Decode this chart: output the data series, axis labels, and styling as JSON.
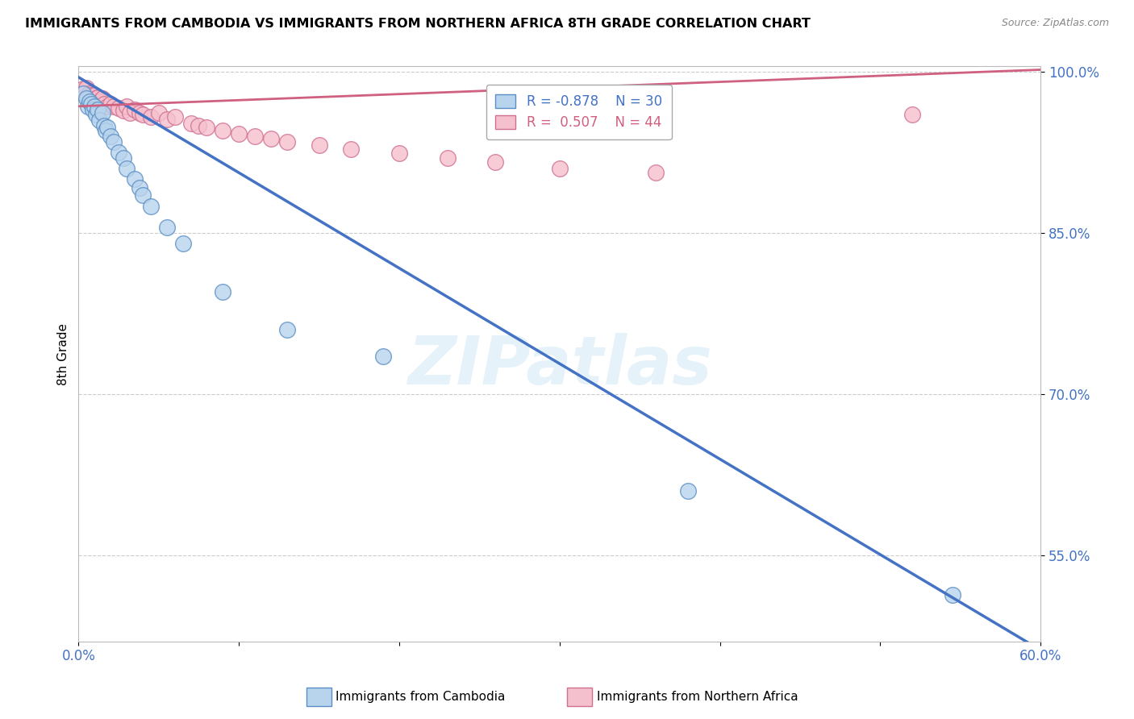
{
  "title": "IMMIGRANTS FROM CAMBODIA VS IMMIGRANTS FROM NORTHERN AFRICA 8TH GRADE CORRELATION CHART",
  "source": "Source: ZipAtlas.com",
  "xlabel_label": "Immigrants from Cambodia",
  "ylabel_label": "8th Grade",
  "x_min": 0.0,
  "x_max": 0.6,
  "y_min": 0.47,
  "y_max": 1.005,
  "y_ticks": [
    0.55,
    0.7,
    0.85,
    1.0
  ],
  "y_tick_labels": [
    "55.0%",
    "70.0%",
    "85.0%",
    "100.0%"
  ],
  "legend_r1": "R = -0.878",
  "legend_n1": "N = 30",
  "legend_r2": "R =  0.507",
  "legend_n2": "N = 44",
  "color_cambodia_fill": "#b8d4ed",
  "color_cambodia_edge": "#5b8ec4",
  "color_cambodia_line": "#4472c4",
  "color_nafrica_fill": "#f5c0ce",
  "color_nafrica_edge": "#d07090",
  "color_nafrica_line": "#d06080",
  "watermark": "ZIPatlas",
  "cambodia_scatter_x": [
    0.003,
    0.005,
    0.006,
    0.007,
    0.008,
    0.009,
    0.01,
    0.011,
    0.012,
    0.013,
    0.015,
    0.016,
    0.017,
    0.018,
    0.02,
    0.022,
    0.025,
    0.028,
    0.03,
    0.035,
    0.038,
    0.04,
    0.045,
    0.055,
    0.065,
    0.09,
    0.13,
    0.19,
    0.38,
    0.545
  ],
  "cambodia_scatter_y": [
    0.98,
    0.975,
    0.968,
    0.972,
    0.97,
    0.965,
    0.968,
    0.96,
    0.965,
    0.955,
    0.962,
    0.95,
    0.945,
    0.948,
    0.94,
    0.935,
    0.925,
    0.92,
    0.91,
    0.9,
    0.892,
    0.885,
    0.875,
    0.855,
    0.84,
    0.795,
    0.76,
    0.735,
    0.61,
    0.513
  ],
  "nafrica_scatter_x": [
    0.002,
    0.003,
    0.004,
    0.005,
    0.006,
    0.007,
    0.008,
    0.009,
    0.01,
    0.011,
    0.012,
    0.013,
    0.015,
    0.016,
    0.018,
    0.02,
    0.022,
    0.025,
    0.028,
    0.03,
    0.032,
    0.035,
    0.038,
    0.04,
    0.045,
    0.05,
    0.055,
    0.06,
    0.07,
    0.075,
    0.08,
    0.09,
    0.1,
    0.11,
    0.12,
    0.13,
    0.15,
    0.17,
    0.2,
    0.23,
    0.26,
    0.3,
    0.36,
    0.52
  ],
  "nafrica_scatter_y": [
    0.982,
    0.984,
    0.98,
    0.985,
    0.978,
    0.98,
    0.978,
    0.976,
    0.978,
    0.975,
    0.976,
    0.972,
    0.975,
    0.97,
    0.968,
    0.97,
    0.968,
    0.966,
    0.964,
    0.968,
    0.962,
    0.965,
    0.962,
    0.96,
    0.958,
    0.962,
    0.956,
    0.958,
    0.952,
    0.95,
    0.948,
    0.945,
    0.942,
    0.94,
    0.938,
    0.935,
    0.932,
    0.928,
    0.924,
    0.92,
    0.916,
    0.91,
    0.906,
    0.96
  ],
  "trend_cambodia_x0": 0.0,
  "trend_cambodia_y0": 0.995,
  "trend_cambodia_x1": 0.6,
  "trend_cambodia_y1": 0.462,
  "trend_nafrica_x0": 0.0,
  "trend_nafrica_y0": 0.968,
  "trend_nafrica_x1": 0.6,
  "trend_nafrica_y1": 1.002
}
